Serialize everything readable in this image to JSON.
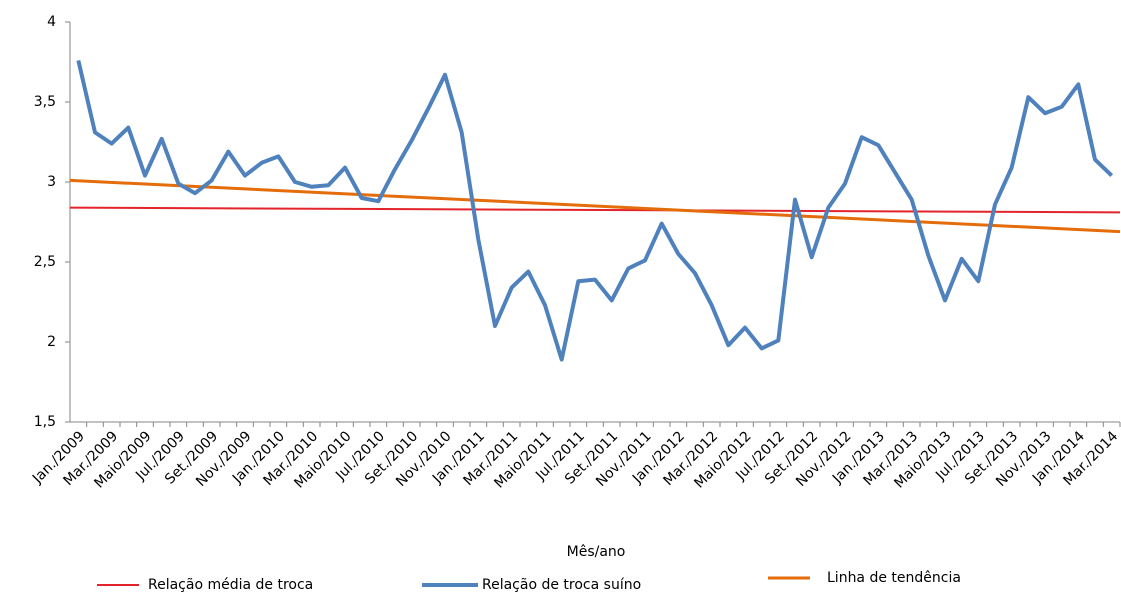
{
  "chart_data": {
    "type": "line",
    "x_label": "Mês/ano",
    "categories": [
      "Jan./2009",
      null,
      "Mar./2009",
      null,
      "Maio/2009",
      null,
      "Jul./2009",
      null,
      "Set./2009",
      null,
      "Nov./2009",
      null,
      "Jan./2010",
      null,
      "Mar./2010",
      null,
      "Maio/2010",
      null,
      "Jul./2010",
      null,
      "Set./2010",
      null,
      "Nov./2010",
      null,
      "Jan./2011",
      null,
      "Mar./2011",
      null,
      "Maio/2011",
      null,
      "Jul./2011",
      null,
      "Set./2011",
      null,
      "Nov./2011",
      null,
      "Jan./2012",
      null,
      "Mar./2012",
      null,
      "Maio/2012",
      null,
      "Jul./2012",
      null,
      "Set./2012",
      null,
      "Nov./2012",
      null,
      "Jan./2013",
      null,
      "Mar./2013",
      null,
      "Maio/2013",
      null,
      "Jul./2013",
      null,
      "Set./2013",
      null,
      "Nov./2013",
      null,
      "Jan./2014",
      null,
      "Mar./2014"
    ],
    "series": [
      {
        "name": "Relação de troca suíno",
        "color": "#4f81bd",
        "values": [
          3.76,
          3.31,
          3.24,
          3.34,
          3.04,
          3.27,
          2.99,
          2.93,
          3.01,
          3.19,
          3.04,
          3.12,
          3.16,
          3.0,
          2.97,
          2.98,
          3.09,
          2.9,
          2.88,
          3.08,
          3.26,
          3.46,
          3.67,
          3.31,
          2.64,
          2.1,
          2.34,
          2.44,
          2.23,
          1.89,
          2.38,
          2.39,
          2.26,
          2.46,
          2.51,
          2.74,
          2.55,
          2.43,
          2.23,
          1.98,
          2.09,
          1.96,
          2.01,
          2.89,
          2.53,
          2.84,
          2.99,
          3.28,
          3.23,
          3.06,
          2.89,
          2.54,
          2.26,
          2.52,
          2.38,
          2.86,
          3.09,
          3.53,
          3.43,
          3.47,
          3.61,
          3.14,
          3.04
        ]
      }
    ],
    "reference_lines": [
      {
        "name": "Relação média de troca",
        "color": "#e3242b",
        "values": [
          2.84,
          2.81
        ]
      },
      {
        "name": "Linha de tendência",
        "color": "#e46c0a",
        "values": [
          3.01,
          2.69
        ]
      }
    ],
    "ylim": [
      1.5,
      4
    ],
    "yticks": [
      {
        "value": 1.5,
        "label": "1,5"
      },
      2,
      {
        "value": 2.5,
        "label": "2,5"
      },
      3,
      {
        "value": 3.5,
        "label": "3,5"
      },
      4
    ],
    "grid": false
  }
}
